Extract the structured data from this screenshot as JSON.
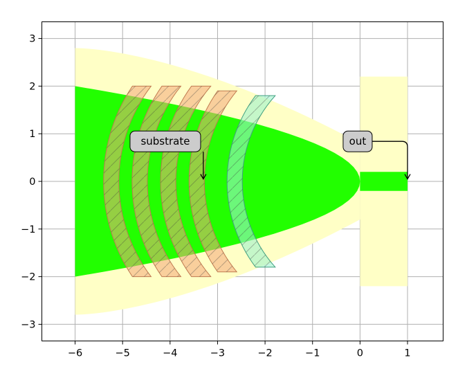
{
  "chart_data": {
    "type": "diagram",
    "xlim": [
      -6.7,
      1.75
    ],
    "ylim": [
      -3.35,
      3.35
    ],
    "xticks": [
      -6,
      -5,
      -4,
      -3,
      -2,
      -1,
      0,
      1
    ],
    "yticks": [
      -3,
      -2,
      -1,
      0,
      1,
      2,
      3
    ],
    "xtick_labels": [
      "−6",
      "−5",
      "−4",
      "−3",
      "−2",
      "−1",
      "0",
      "1"
    ],
    "ytick_labels": [
      "−3",
      "−2",
      "−1",
      "0",
      "1",
      "2",
      "3"
    ],
    "grid": true,
    "colors": {
      "halo": "#ffffc6",
      "beam": "#22ff00",
      "substrate_fill": "#f4a87a",
      "output_optic_fill": "#9ff2cc",
      "grid": "#b0b0b0",
      "annotation_box": "#cccccc"
    },
    "annotations": {
      "substrate": {
        "text": "substrate",
        "xy": [
          -3.3,
          0.05
        ],
        "xytext": [
          -4.1,
          0.84
        ]
      },
      "out": {
        "text": "out",
        "xy": [
          1.0,
          0.05
        ],
        "xytext": [
          -0.05,
          0.84
        ]
      }
    }
  }
}
